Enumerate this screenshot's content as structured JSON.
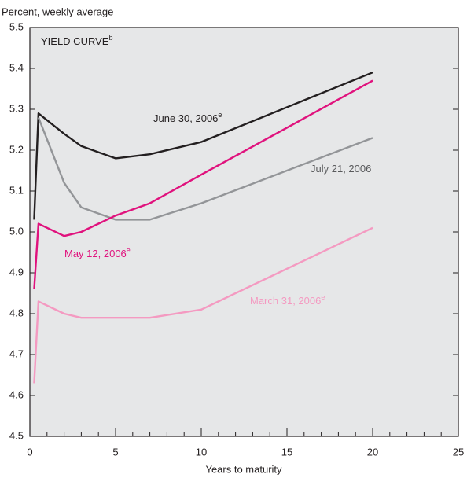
{
  "chart_data": {
    "type": "line",
    "title": "YIELD CURVE",
    "title_note": "b",
    "y_label": "Percent, weekly average",
    "x_label": "Years to maturity",
    "x": [
      0.25,
      0.5,
      2,
      3,
      5,
      7,
      10,
      20
    ],
    "series": [
      {
        "name": "June 30, 2006",
        "note": "e",
        "color": "#231f20",
        "values": [
          5.03,
          5.29,
          5.24,
          5.21,
          5.18,
          5.19,
          5.22,
          5.39
        ]
      },
      {
        "name": "July 21, 2006",
        "color": "#939598",
        "values": [
          null,
          5.28,
          5.12,
          5.06,
          5.03,
          5.03,
          5.07,
          5.23
        ]
      },
      {
        "name": "May 12, 2006",
        "note": "e",
        "color": "#e0127d",
        "values": [
          4.86,
          5.02,
          4.99,
          5.0,
          5.04,
          5.07,
          5.14,
          5.37
        ]
      },
      {
        "name": "March 31, 2006",
        "note": "e",
        "color": "#f49ac1",
        "values": [
          4.63,
          4.83,
          4.8,
          4.79,
          4.79,
          4.79,
          4.81,
          5.01
        ]
      }
    ],
    "xlim": [
      0,
      25
    ],
    "xticks": [
      0,
      5,
      10,
      15,
      20,
      25
    ],
    "xminorticks": [
      1,
      2,
      3,
      4,
      6,
      7,
      8,
      9,
      11,
      12,
      13,
      14,
      16,
      17,
      18,
      19,
      21,
      22,
      23,
      24
    ],
    "ylim": [
      4.5,
      5.5
    ],
    "yticks": [
      4.5,
      4.6,
      4.7,
      4.8,
      4.9,
      {
        "value": 5,
        "label": "5.0"
      },
      5.1,
      5.2,
      5.3,
      5.4,
      5.5
    ],
    "plot_background": "#e6e7e8"
  }
}
